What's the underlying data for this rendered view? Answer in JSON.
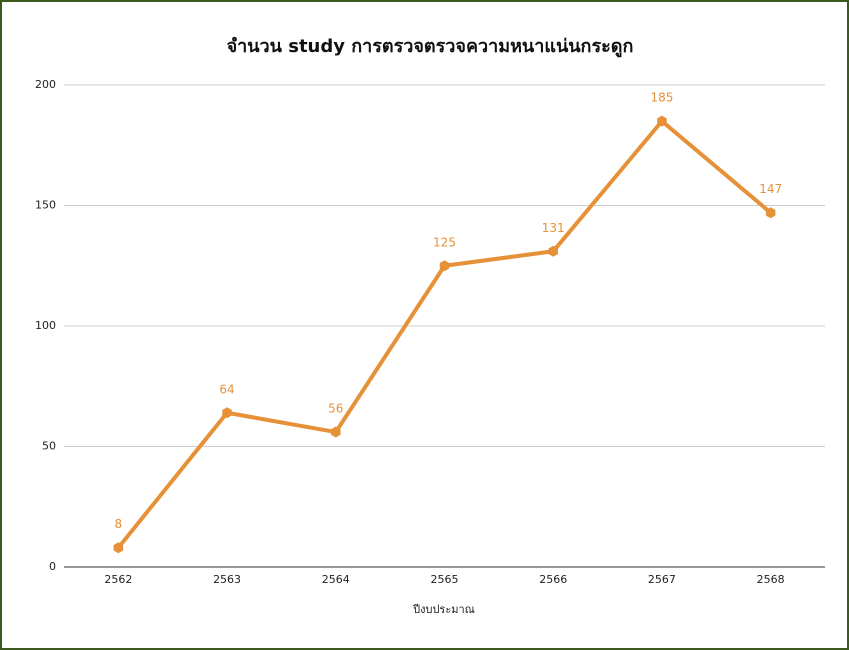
{
  "chart_data": {
    "type": "line",
    "title": "จำนวน study การตรวจตรวจความหนาแน่นกระดูก",
    "x_label": "ปีงบประมาณ",
    "categories": [
      "2562",
      "2563",
      "2564",
      "2565",
      "2566",
      "2567",
      "2568"
    ],
    "series": [
      {
        "name": "study",
        "color": "#e69138",
        "values": [
          8,
          64,
          56,
          125,
          131,
          185,
          147
        ]
      }
    ],
    "ylim": [
      0,
      200
    ],
    "yticks": [
      0,
      50,
      100,
      150,
      200
    ],
    "grid": true
  }
}
